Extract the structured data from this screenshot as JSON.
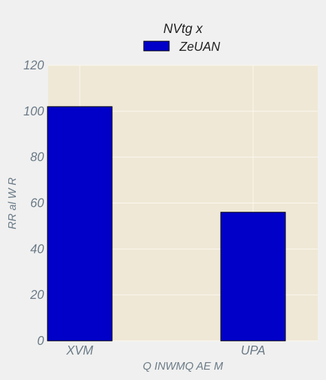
{
  "chart_data": {
    "type": "bar",
    "categories": [
      "XVM",
      "UPA"
    ],
    "series": [
      {
        "name": "ZeUAN",
        "values": [
          102,
          56
        ],
        "color": "#0000c8"
      }
    ],
    "legend_title": "NVtg x",
    "legend_placement": "top-center",
    "xlabel": "Q INWMQ AE M",
    "ylabel": "RR al W R",
    "ylim": [
      0,
      120
    ],
    "yticks": [
      0,
      20,
      40,
      60,
      80,
      100,
      120
    ],
    "grid": true,
    "plot_background": "#efe8d6",
    "grid_color": "#fbf8f0"
  }
}
